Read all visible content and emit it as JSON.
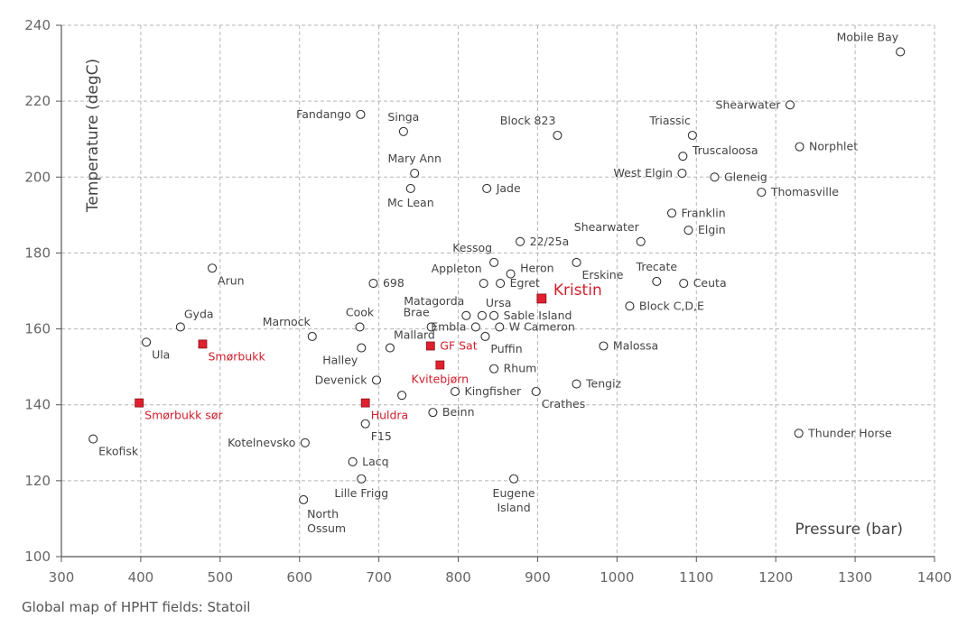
{
  "caption": "Global map of HPHT fields: Statoil",
  "chart_data": {
    "type": "scatter",
    "title": "",
    "xlabel": "Pressure (bar)",
    "ylabel": "Temperature (degC)",
    "xlim": [
      300,
      1400
    ],
    "ylim": [
      100,
      240
    ],
    "xticks": [
      "300",
      "400",
      "500",
      "600",
      "700",
      "800",
      "900",
      "1000",
      "1100",
      "1200",
      "1300",
      "1400"
    ],
    "yticks": [
      "100",
      "120",
      "140",
      "160",
      "180",
      "200",
      "220",
      "240"
    ],
    "grid": true,
    "colors": {
      "point": "#333333",
      "highlight": "#e0202e",
      "grid": "#b5b5b5"
    },
    "points": [
      {
        "name": "Mobile Bay",
        "x": 1357,
        "y": 233,
        "label_pos": "above-left"
      },
      {
        "name": "Shearwater",
        "x": 1218,
        "y": 219,
        "label_pos": "left"
      },
      {
        "name": "Triassic",
        "x": 1095,
        "y": 211,
        "label_pos": "above-left"
      },
      {
        "name": "Truscaloosa",
        "x": 1083,
        "y": 205.5,
        "label_pos": "right-high"
      },
      {
        "name": "Norphlet",
        "x": 1230,
        "y": 208,
        "label_pos": "right"
      },
      {
        "name": "West Elgin",
        "x": 1082,
        "y": 201,
        "label_pos": "left"
      },
      {
        "name": "Gleneig",
        "x": 1123,
        "y": 200,
        "label_pos": "right"
      },
      {
        "name": "Thomasville",
        "x": 1182,
        "y": 196,
        "label_pos": "right"
      },
      {
        "name": "Franklin",
        "x": 1069,
        "y": 190.5,
        "label_pos": "right"
      },
      {
        "name": "Elgin",
        "x": 1090,
        "y": 186,
        "label_pos": "right"
      },
      {
        "name": "Shearwater",
        "x": 1030,
        "y": 183,
        "label_pos": "above-left"
      },
      {
        "name": "Fandango",
        "x": 677,
        "y": 216.5,
        "label_pos": "left"
      },
      {
        "name": "Singa",
        "x": 731,
        "y": 212,
        "label_pos": "above"
      },
      {
        "name": "Block 823",
        "x": 925,
        "y": 211,
        "label_pos": "above-left"
      },
      {
        "name": "Mary Ann",
        "x": 745,
        "y": 201,
        "label_pos": "above"
      },
      {
        "name": "Mc Lean",
        "x": 740,
        "y": 197,
        "label_pos": "below"
      },
      {
        "name": "Jade",
        "x": 836,
        "y": 197,
        "label_pos": "right"
      },
      {
        "name": "22/25a",
        "x": 878,
        "y": 183,
        "label_pos": "right"
      },
      {
        "name": "Kessog",
        "x": 845,
        "y": 177.5,
        "label_pos": "above-left"
      },
      {
        "name": "Heron",
        "x": 866,
        "y": 174.5,
        "label_pos": "right-high"
      },
      {
        "name": "Erskine",
        "x": 949,
        "y": 177.5,
        "label_pos": "below-right"
      },
      {
        "name": "Appleton",
        "x": 832,
        "y": 172,
        "label_pos": "above-left"
      },
      {
        "name": "Egret",
        "x": 853,
        "y": 172,
        "label_pos": "right"
      },
      {
        "name": "Trecate",
        "x": 1050,
        "y": 172.5,
        "label_pos": "above"
      },
      {
        "name": "Ceuta",
        "x": 1084,
        "y": 172,
        "label_pos": "right"
      },
      {
        "name": "Block C,D,E",
        "x": 1016,
        "y": 166,
        "label_pos": "right"
      },
      {
        "name": "Arun",
        "x": 490,
        "y": 176,
        "label_pos": "below-right"
      },
      {
        "name": "698",
        "x": 693,
        "y": 172,
        "label_pos": "right"
      },
      {
        "name": "Gyda",
        "x": 450,
        "y": 160.5,
        "label_pos": "above-right"
      },
      {
        "name": "Cook",
        "x": 676,
        "y": 160.5,
        "label_pos": "above"
      },
      {
        "name": "Marnock",
        "x": 616,
        "y": 158,
        "label_pos": "above-left"
      },
      {
        "name": "Matagorda",
        "x": 810,
        "y": 163.5,
        "label_pos": "above-left"
      },
      {
        "name": "Ursa",
        "x": 830,
        "y": 163.5,
        "label_pos": "above-right"
      },
      {
        "name": "Brae",
        "x": 766,
        "y": 160.5,
        "label_pos": "above-left"
      },
      {
        "name": "Sable Island",
        "x": 845,
        "y": 163.5,
        "label_pos": "right"
      },
      {
        "name": "Embla",
        "x": 822,
        "y": 160.5,
        "label_pos": "left"
      },
      {
        "name": "W Cameron",
        "x": 852,
        "y": 160.5,
        "label_pos": "right"
      },
      {
        "name": "Mallard",
        "x": 714,
        "y": 155,
        "label_pos": "above-right"
      },
      {
        "name": "Puffin",
        "x": 834,
        "y": 158,
        "label_pos": "below-right"
      },
      {
        "name": "Ula",
        "x": 407,
        "y": 156.5,
        "label_pos": "below-right"
      },
      {
        "name": "Halley",
        "x": 678,
        "y": 155,
        "label_pos": "below-left"
      },
      {
        "name": "Malossa",
        "x": 983,
        "y": 155.5,
        "label_pos": "right"
      },
      {
        "name": "Rhum",
        "x": 845,
        "y": 149.5,
        "label_pos": "right"
      },
      {
        "name": "Devenick",
        "x": 697,
        "y": 146.5,
        "label_pos": "left"
      },
      {
        "name": "Tengiz",
        "x": 949,
        "y": 145.5,
        "label_pos": "right"
      },
      {
        "name": "Kingfisher",
        "x": 796,
        "y": 143.5,
        "label_pos": "right"
      },
      {
        "name": "Crathes",
        "x": 898,
        "y": 143.5,
        "label_pos": "below-right"
      },
      {
        "name": "",
        "x": 729,
        "y": 142.5,
        "label_pos": "none"
      },
      {
        "name": "Beinn",
        "x": 768,
        "y": 138,
        "label_pos": "right"
      },
      {
        "name": "F15",
        "x": 683,
        "y": 135,
        "label_pos": "below-right"
      },
      {
        "name": "Ekofisk",
        "x": 340,
        "y": 131,
        "label_pos": "below-right"
      },
      {
        "name": "Kotelnevsko",
        "x": 607,
        "y": 130,
        "label_pos": "left"
      },
      {
        "name": "Thunder Horse",
        "x": 1229,
        "y": 132.5,
        "label_pos": "right"
      },
      {
        "name": "Lacq",
        "x": 667,
        "y": 125,
        "label_pos": "right"
      },
      {
        "name": "Lille Frigg",
        "x": 678,
        "y": 120.5,
        "label_pos": "below"
      },
      {
        "name": "Eugene Island",
        "x": 870,
        "y": 120.5,
        "label_pos": "below-two"
      },
      {
        "name": "North Ossum",
        "x": 605,
        "y": 115,
        "label_pos": "below-two-right"
      }
    ],
    "highlight_points": [
      {
        "name": "Smørbukk",
        "x": 478,
        "y": 156,
        "label_pos": "below-right"
      },
      {
        "name": "Smørbukk sør",
        "x": 398,
        "y": 140.5,
        "label_pos": "below-right"
      },
      {
        "name": "Kristin",
        "x": 905,
        "y": 168,
        "label_pos": "right-big"
      },
      {
        "name": "GF Sat",
        "x": 765,
        "y": 155.5,
        "label_pos": "right"
      },
      {
        "name": "Kvitebjørn",
        "x": 777,
        "y": 150.5,
        "label_pos": "below"
      },
      {
        "name": "Huldra",
        "x": 683,
        "y": 140.5,
        "label_pos": "below-right"
      }
    ]
  }
}
